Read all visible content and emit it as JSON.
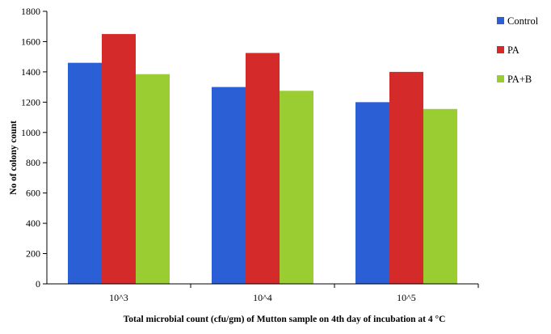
{
  "chart_data": {
    "type": "bar",
    "title": "",
    "xlabel": "Total microbial count (cfu/gm) of Mutton sample on 4th day of incubation at 4 °C",
    "ylabel": "No of colony count",
    "categories": [
      "10^3",
      "10^4",
      "10^5"
    ],
    "ylim": [
      0,
      1800
    ],
    "yticks": [
      0,
      200,
      400,
      600,
      800,
      1000,
      1200,
      1400,
      1600,
      1800
    ],
    "grid": false,
    "legend_position": "right",
    "series": [
      {
        "name": "Control",
        "color": "#2a5fd6",
        "values": [
          1460,
          1300,
          1200
        ]
      },
      {
        "name": "PA",
        "color": "#d42a2a",
        "values": [
          1650,
          1525,
          1400
        ]
      },
      {
        "name": "PA+B",
        "color": "#9acd32",
        "values": [
          1385,
          1275,
          1155
        ]
      }
    ]
  }
}
